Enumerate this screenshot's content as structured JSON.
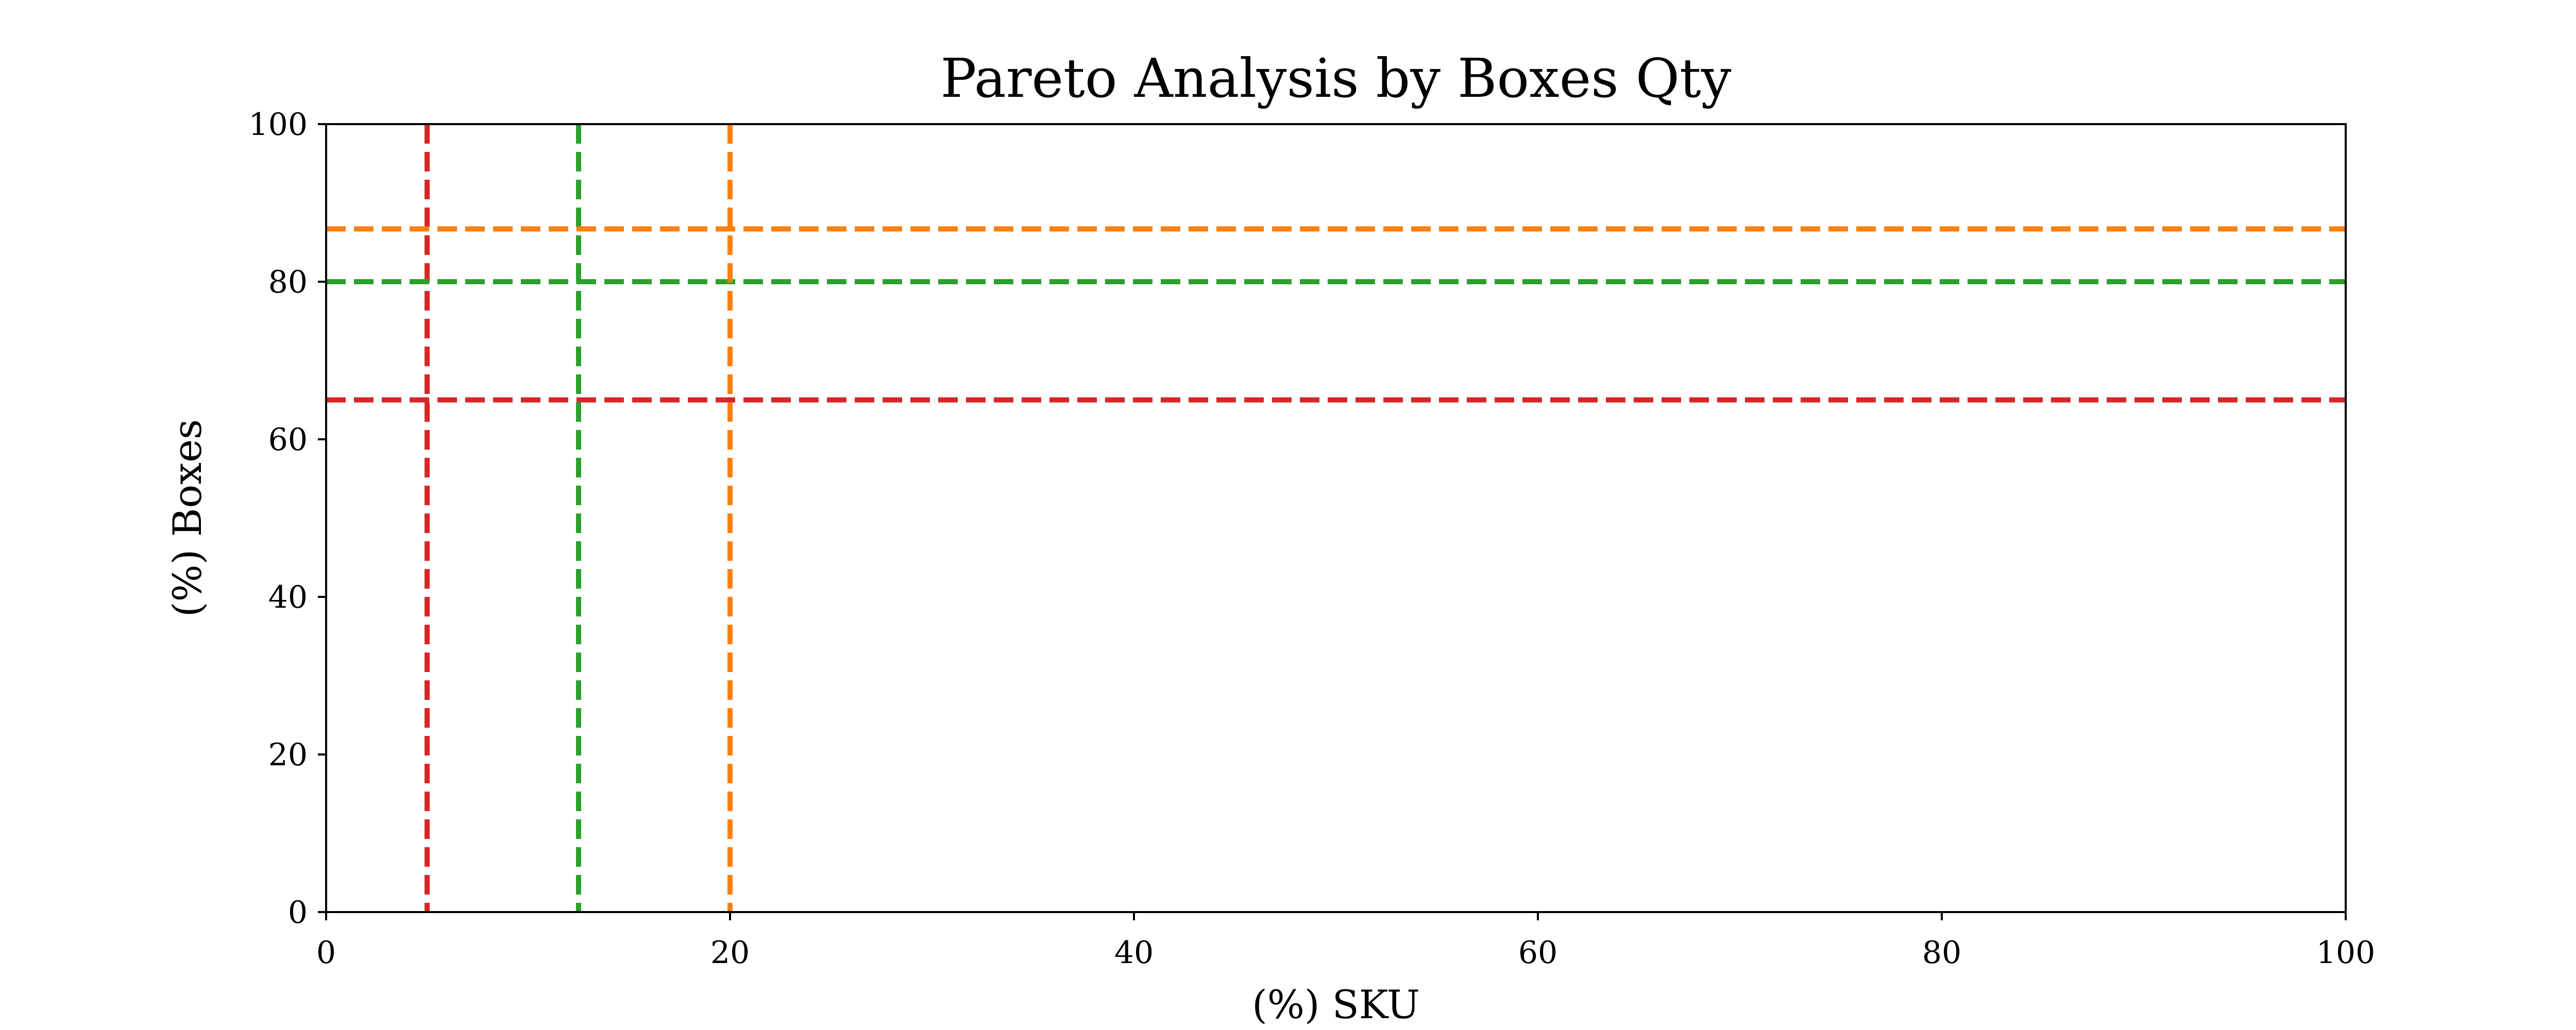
{
  "chart_data": {
    "type": "line",
    "title": "Pareto Analysis by Boxes Qty",
    "xlabel": "(%) SKU",
    "ylabel": "(%) Boxes",
    "xlim": [
      0,
      100
    ],
    "ylim": [
      0,
      100
    ],
    "x_ticks": [
      0,
      20,
      40,
      60,
      80,
      100
    ],
    "y_ticks": [
      0,
      20,
      40,
      60,
      80,
      100
    ],
    "grid": false,
    "series": [],
    "reference_lines": [
      {
        "orientation": "vertical",
        "value": 5,
        "color": "#d62728",
        "style": "dashed"
      },
      {
        "orientation": "horizontal",
        "value": 65,
        "color": "#d62728",
        "style": "dashed"
      },
      {
        "orientation": "vertical",
        "value": 12.5,
        "color": "#2ca02c",
        "style": "dashed"
      },
      {
        "orientation": "horizontal",
        "value": 80,
        "color": "#2ca02c",
        "style": "dashed"
      },
      {
        "orientation": "vertical",
        "value": 20,
        "color": "#ff7f0e",
        "style": "dashed"
      },
      {
        "orientation": "horizontal",
        "value": 86.7,
        "color": "#ff7f0e",
        "style": "dashed"
      }
    ]
  }
}
